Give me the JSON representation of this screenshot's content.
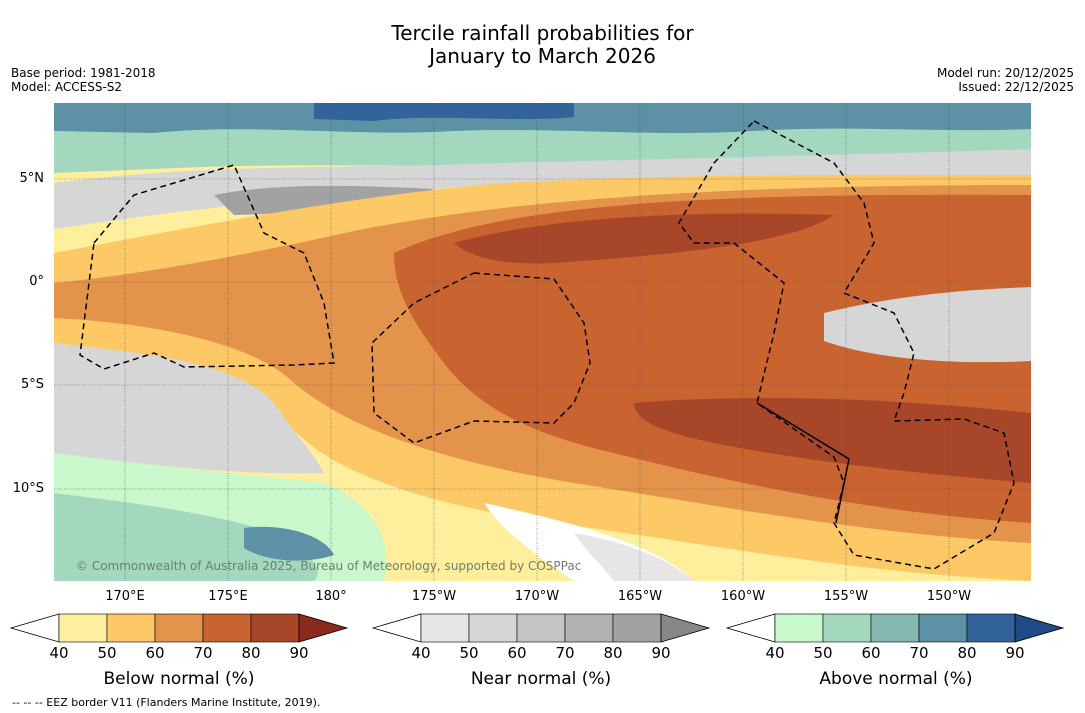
{
  "title": {
    "line1": "Tercile rainfall probabilities for",
    "line2": "January to March 2026"
  },
  "meta_left": {
    "base_period": "Base period: 1981-2018",
    "model": "Model: ACCESS-S2"
  },
  "meta_right": {
    "model_run": "Model run: 20/12/2025",
    "issued": "Issued: 22/12/2025"
  },
  "map": {
    "copyright": "© Commonwealth of Australia 2025, Bureau of Meteorology, supported by COSPPac",
    "lat_labels": [
      "5°N",
      "0°",
      "5°S",
      "10°S"
    ],
    "lon_labels": [
      "170°E",
      "175°E",
      "180°",
      "175°W",
      "170°W",
      "165°W",
      "160°W",
      "155°W",
      "150°W"
    ]
  },
  "colorbars": [
    {
      "name": "Below normal (%)",
      "ticks": [
        "40",
        "50",
        "60",
        "70",
        "80",
        "90"
      ],
      "colors": [
        "#ffffff",
        "#ffeea0",
        "#fdc966",
        "#e3934a",
        "#c9632f",
        "#a8462a",
        "#8a2a1c"
      ]
    },
    {
      "name": "Near normal (%)",
      "ticks": [
        "40",
        "50",
        "60",
        "70",
        "80",
        "90"
      ],
      "colors": [
        "#ffffff",
        "#e6e6e6",
        "#d6d6d6",
        "#c4c4c4",
        "#b2b2b2",
        "#a2a2a2",
        "#888888"
      ]
    },
    {
      "name": "Above normal (%)",
      "ticks": [
        "40",
        "50",
        "60",
        "70",
        "80",
        "90"
      ],
      "colors": [
        "#ffffff",
        "#c8f8cc",
        "#a3d8be",
        "#86b8b2",
        "#5c91a6",
        "#326399",
        "#1e4a86"
      ]
    }
  ],
  "footnote": "--  --  -- EEZ border V11 (Flanders Marine Institute, 2019)."
}
